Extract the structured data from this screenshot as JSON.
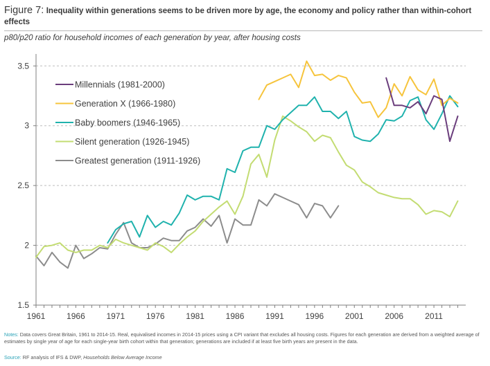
{
  "header": {
    "figure_label": "Figure 7:",
    "title": "Inequality within generations seems to be driven more by age, the economy and policy rather than within-cohort effects"
  },
  "subtitle": "p80/p20 ratio for household incomes of each generation by year, after housing costs",
  "footer": {
    "notes_label": "Notes:",
    "notes_text": "Data covers Great Britain, 1961 to 2014-15. Real, equivalised incomes in 2014-15 prices using a CPI variant that excludes all housing costs. Figures for each generation are derived from a weighted average of estimates by single year of age for each single-year birth cohort within that generation; generations are included if at least five birth years are present in the data.",
    "source_label": "Source:",
    "source_text": "RF analysis of IFS & DWP,",
    "source_title": "Households Below Average Income"
  },
  "chart_data": {
    "type": "line",
    "xlim": [
      1961,
      2015
    ],
    "ylim": [
      1.5,
      3.6
    ],
    "xticks": [
      1961,
      1966,
      1971,
      1976,
      1981,
      1986,
      1991,
      1996,
      2001,
      2006,
      2011
    ],
    "yticks": [
      1.5,
      2,
      2.5,
      3,
      3.5
    ],
    "ytick_labels": [
      "1.5",
      "2",
      "2.5",
      "3",
      "3.5"
    ],
    "grid": "horizontal dashed",
    "legend_position": "top-left",
    "series": [
      {
        "name": "Millennials (1981-2000)",
        "color": "#6a3d7c",
        "x": [
          2005,
          2006,
          2007,
          2008,
          2009,
          2010,
          2011,
          2012,
          2013,
          2014
        ],
        "y": [
          3.4,
          3.17,
          3.17,
          3.15,
          3.2,
          3.1,
          3.25,
          3.22,
          2.87,
          3.08
        ]
      },
      {
        "name": "Generation X (1966-1980)",
        "color": "#f6c43c",
        "x": [
          1989,
          1990,
          1991,
          1992,
          1993,
          1994,
          1995,
          1996,
          1997,
          1998,
          1999,
          2000,
          2001,
          2002,
          2003,
          2004,
          2005,
          2006,
          2007,
          2008,
          2009,
          2010,
          2011,
          2012,
          2013,
          2014
        ],
        "y": [
          3.22,
          3.34,
          3.37,
          3.4,
          3.43,
          3.32,
          3.54,
          3.42,
          3.43,
          3.38,
          3.42,
          3.4,
          3.28,
          3.19,
          3.2,
          3.07,
          3.15,
          3.35,
          3.25,
          3.41,
          3.3,
          3.26,
          3.39,
          3.17,
          3.23,
          3.19
        ]
      },
      {
        "name": "Baby boomers (1946-1965)",
        "color": "#1fb2ad",
        "x": [
          1970,
          1971,
          1972,
          1973,
          1974,
          1975,
          1976,
          1977,
          1978,
          1979,
          1980,
          1981,
          1982,
          1983,
          1984,
          1985,
          1986,
          1987,
          1988,
          1989,
          1990,
          1991,
          1992,
          1993,
          1994,
          1995,
          1996,
          1997,
          1998,
          1999,
          2000,
          2001,
          2002,
          2003,
          2004,
          2005,
          2006,
          2007,
          2008,
          2009,
          2010,
          2011,
          2012,
          2013,
          2014
        ],
        "y": [
          2.02,
          2.13,
          2.18,
          2.2,
          2.07,
          2.25,
          2.15,
          2.2,
          2.17,
          2.27,
          2.42,
          2.38,
          2.41,
          2.41,
          2.38,
          2.64,
          2.61,
          2.79,
          2.82,
          2.82,
          3.0,
          2.97,
          3.05,
          3.11,
          3.17,
          3.17,
          3.24,
          3.12,
          3.12,
          3.06,
          3.12,
          2.91,
          2.88,
          2.87,
          2.93,
          3.05,
          3.04,
          3.08,
          3.21,
          3.24,
          3.05,
          2.97,
          3.1,
          3.25,
          3.16
        ]
      },
      {
        "name": "Silent generation (1926-1945)",
        "color": "#c3dc72",
        "x": [
          1961,
          1962,
          1963,
          1964,
          1965,
          1966,
          1967,
          1968,
          1969,
          1970,
          1971,
          1972,
          1973,
          1974,
          1975,
          1976,
          1977,
          1978,
          1979,
          1980,
          1981,
          1982,
          1983,
          1984,
          1985,
          1986,
          1987,
          1988,
          1989,
          1990,
          1991,
          1992,
          1993,
          1994,
          1995,
          1996,
          1997,
          1998,
          1999,
          2000,
          2001,
          2002,
          2003,
          2004,
          2005,
          2006,
          2007,
          2008,
          2009,
          2010,
          2011,
          2012,
          2013,
          2014
        ],
        "y": [
          1.9,
          1.99,
          2.0,
          2.02,
          1.96,
          1.94,
          1.96,
          1.96,
          2.0,
          1.98,
          2.05,
          2.02,
          2.0,
          1.98,
          1.96,
          2.02,
          1.99,
          1.94,
          2.01,
          2.07,
          2.12,
          2.2,
          2.26,
          2.32,
          2.37,
          2.26,
          2.41,
          2.68,
          2.76,
          2.57,
          2.88,
          3.08,
          3.04,
          2.99,
          2.95,
          2.87,
          2.92,
          2.9,
          2.78,
          2.67,
          2.63,
          2.53,
          2.49,
          2.44,
          2.42,
          2.4,
          2.39,
          2.39,
          2.34,
          2.26,
          2.29,
          2.28,
          2.24,
          2.37
        ]
      },
      {
        "name": "Greatest generation (1911-1926)",
        "color": "#8c8c8c",
        "x": [
          1961,
          1962,
          1963,
          1964,
          1965,
          1966,
          1967,
          1968,
          1969,
          1970,
          1971,
          1972,
          1973,
          1974,
          1975,
          1976,
          1977,
          1978,
          1979,
          1980,
          1981,
          1982,
          1983,
          1984,
          1985,
          1986,
          1987,
          1988,
          1989,
          1990,
          1991,
          1992,
          1993,
          1994,
          1995,
          1996,
          1997,
          1998,
          1999
        ],
        "y": [
          1.91,
          1.83,
          1.94,
          1.86,
          1.81,
          2.0,
          1.89,
          1.93,
          1.98,
          1.97,
          2.09,
          2.19,
          2.02,
          1.98,
          1.98,
          2.01,
          2.06,
          2.04,
          2.04,
          2.12,
          2.15,
          2.22,
          2.16,
          2.25,
          2.02,
          2.22,
          2.17,
          2.17,
          2.38,
          2.33,
          2.43,
          2.4,
          2.37,
          2.34,
          2.23,
          2.35,
          2.33,
          2.23,
          2.33
        ]
      }
    ]
  }
}
